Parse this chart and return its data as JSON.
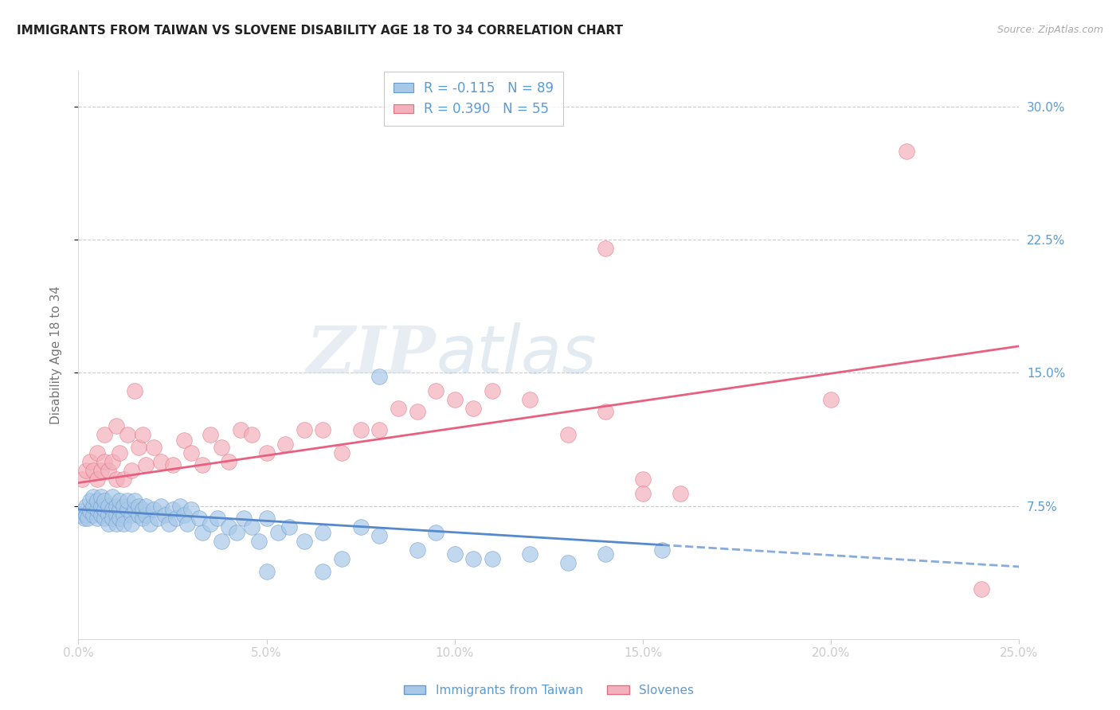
{
  "title": "IMMIGRANTS FROM TAIWAN VS SLOVENE DISABILITY AGE 18 TO 34 CORRELATION CHART",
  "source": "Source: ZipAtlas.com",
  "ylabel": "Disability Age 18 to 34",
  "xlim": [
    0.0,
    0.25
  ],
  "ylim": [
    0.0,
    0.32
  ],
  "xticks": [
    0.0,
    0.05,
    0.1,
    0.15,
    0.2,
    0.25
  ],
  "yticks": [
    0.075,
    0.15,
    0.225,
    0.3
  ],
  "ytick_labels": [
    "7.5%",
    "15.0%",
    "22.5%",
    "30.0%"
  ],
  "xtick_labels": [
    "0.0%",
    "5.0%",
    "10.0%",
    "15.0%",
    "20.0%",
    "25.0%"
  ],
  "grid_color": "#cccccc",
  "bg_color": "#ffffff",
  "watermark_zip": "ZIP",
  "watermark_atlas": "atlas",
  "blue_color": "#a8c8e8",
  "pink_color": "#f4b0bc",
  "blue_edge_color": "#6699cc",
  "pink_edge_color": "#e07080",
  "blue_line_color": "#5588cc",
  "pink_line_color": "#e86080",
  "axis_label_color": "#5b9bd5",
  "tick_color": "#5b9bd5",
  "legend_blue_label": "R = -0.115   N = 89",
  "legend_pink_label": "R = 0.390   N = 55",
  "legend_label_blue": "Immigrants from Taiwan",
  "legend_label_pink": "Slovenes",
  "blue_trend_start_y": 0.073,
  "blue_trend_end_x": 0.155,
  "blue_trend_end_y": 0.053,
  "pink_trend_start_y": 0.088,
  "pink_trend_end_x": 0.25,
  "pink_trend_end_y": 0.165,
  "blue_x": [
    0.0005,
    0.001,
    0.0015,
    0.002,
    0.002,
    0.0025,
    0.003,
    0.003,
    0.004,
    0.004,
    0.004,
    0.005,
    0.005,
    0.005,
    0.006,
    0.006,
    0.006,
    0.007,
    0.007,
    0.007,
    0.008,
    0.008,
    0.008,
    0.009,
    0.009,
    0.009,
    0.01,
    0.01,
    0.01,
    0.011,
    0.011,
    0.011,
    0.012,
    0.012,
    0.012,
    0.013,
    0.013,
    0.014,
    0.014,
    0.015,
    0.015,
    0.016,
    0.016,
    0.017,
    0.017,
    0.018,
    0.018,
    0.019,
    0.02,
    0.021,
    0.022,
    0.023,
    0.024,
    0.025,
    0.026,
    0.027,
    0.028,
    0.029,
    0.03,
    0.032,
    0.033,
    0.035,
    0.037,
    0.038,
    0.04,
    0.042,
    0.044,
    0.046,
    0.048,
    0.05,
    0.053,
    0.056,
    0.06,
    0.065,
    0.07,
    0.075,
    0.08,
    0.09,
    0.1,
    0.11,
    0.12,
    0.13,
    0.14,
    0.155,
    0.08,
    0.095,
    0.105,
    0.05,
    0.065
  ],
  "blue_y": [
    0.07,
    0.072,
    0.068,
    0.07,
    0.075,
    0.068,
    0.072,
    0.078,
    0.07,
    0.075,
    0.08,
    0.068,
    0.073,
    0.078,
    0.07,
    0.075,
    0.08,
    0.068,
    0.073,
    0.078,
    0.07,
    0.075,
    0.065,
    0.073,
    0.068,
    0.08,
    0.07,
    0.075,
    0.065,
    0.073,
    0.078,
    0.068,
    0.07,
    0.075,
    0.065,
    0.073,
    0.078,
    0.07,
    0.065,
    0.073,
    0.078,
    0.07,
    0.075,
    0.068,
    0.073,
    0.07,
    0.075,
    0.065,
    0.073,
    0.068,
    0.075,
    0.07,
    0.065,
    0.073,
    0.068,
    0.075,
    0.07,
    0.065,
    0.073,
    0.068,
    0.06,
    0.065,
    0.068,
    0.055,
    0.063,
    0.06,
    0.068,
    0.063,
    0.055,
    0.068,
    0.06,
    0.063,
    0.055,
    0.06,
    0.045,
    0.063,
    0.058,
    0.05,
    0.048,
    0.045,
    0.048,
    0.043,
    0.048,
    0.05,
    0.148,
    0.06,
    0.045,
    0.038,
    0.038
  ],
  "pink_x": [
    0.001,
    0.002,
    0.003,
    0.004,
    0.005,
    0.005,
    0.006,
    0.007,
    0.007,
    0.008,
    0.009,
    0.01,
    0.01,
    0.011,
    0.012,
    0.013,
    0.014,
    0.015,
    0.016,
    0.017,
    0.018,
    0.02,
    0.022,
    0.025,
    0.028,
    0.03,
    0.033,
    0.035,
    0.038,
    0.04,
    0.043,
    0.046,
    0.05,
    0.055,
    0.06,
    0.065,
    0.07,
    0.075,
    0.08,
    0.085,
    0.09,
    0.095,
    0.1,
    0.105,
    0.11,
    0.12,
    0.13,
    0.14,
    0.15,
    0.16,
    0.14,
    0.15,
    0.2,
    0.22,
    0.24
  ],
  "pink_y": [
    0.09,
    0.095,
    0.1,
    0.095,
    0.09,
    0.105,
    0.095,
    0.1,
    0.115,
    0.095,
    0.1,
    0.09,
    0.12,
    0.105,
    0.09,
    0.115,
    0.095,
    0.14,
    0.108,
    0.115,
    0.098,
    0.108,
    0.1,
    0.098,
    0.112,
    0.105,
    0.098,
    0.115,
    0.108,
    0.1,
    0.118,
    0.115,
    0.105,
    0.11,
    0.118,
    0.118,
    0.105,
    0.118,
    0.118,
    0.13,
    0.128,
    0.14,
    0.135,
    0.13,
    0.14,
    0.135,
    0.115,
    0.128,
    0.09,
    0.082,
    0.22,
    0.082,
    0.135,
    0.275,
    0.028
  ]
}
